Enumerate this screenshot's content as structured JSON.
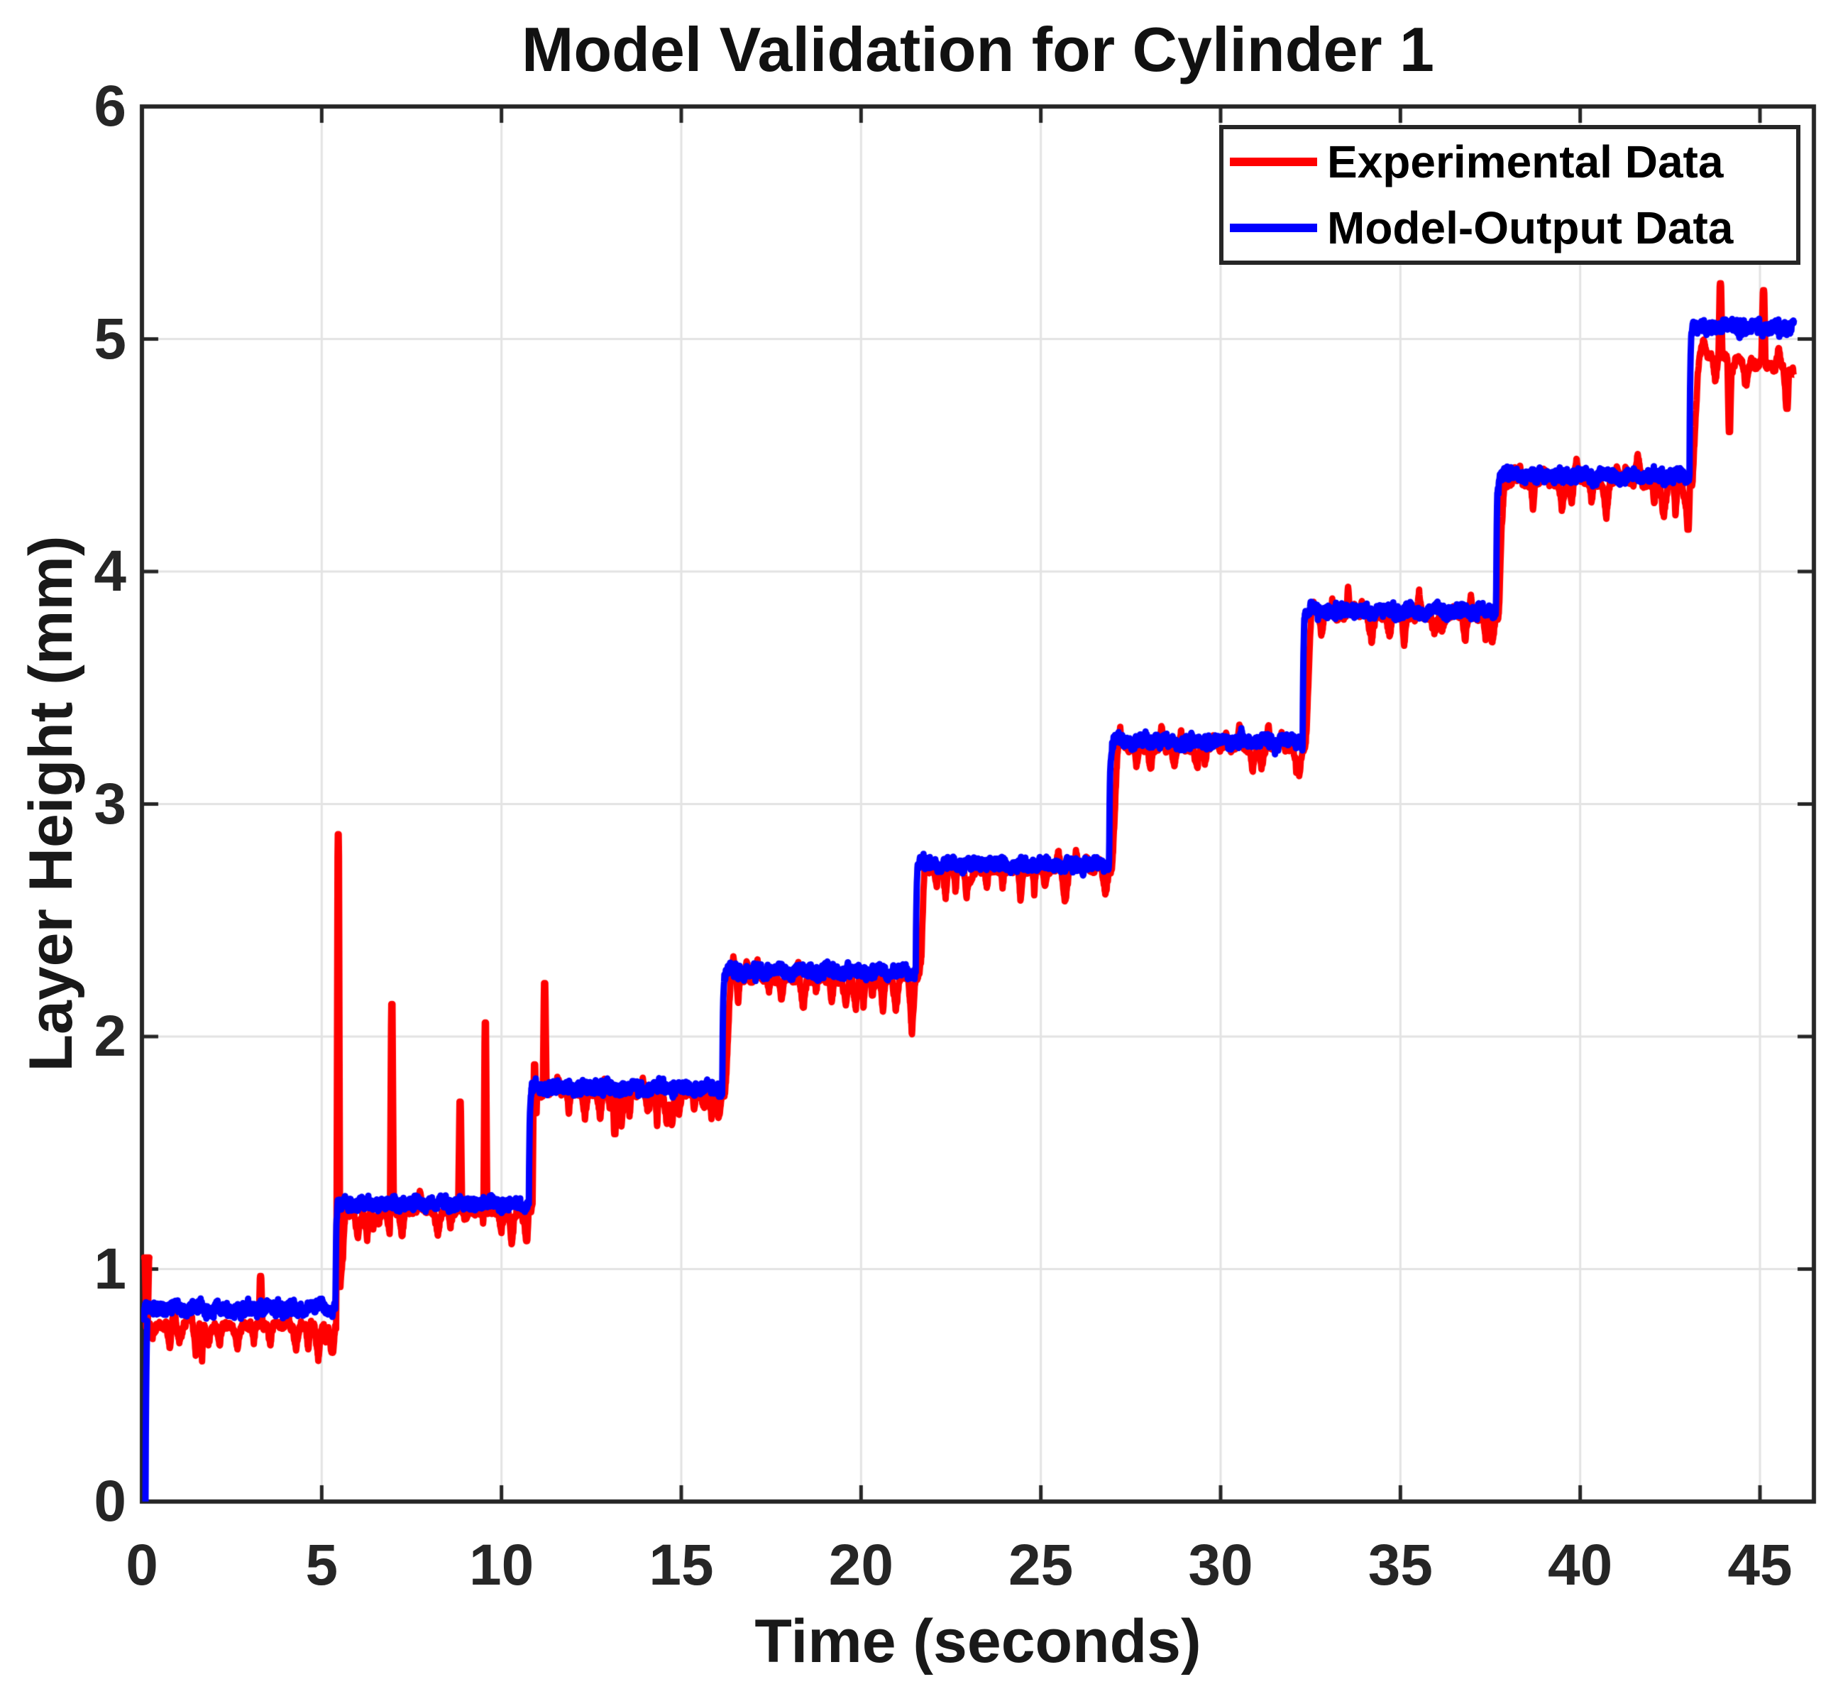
{
  "chart_data": {
    "type": "line",
    "title": "Model Validation for Cylinder 1",
    "xlabel": "Time (seconds)",
    "ylabel": "Layer Height (mm)",
    "xlim": [
      0,
      46.5
    ],
    "ylim": [
      0,
      6
    ],
    "xticks": [
      0,
      5,
      10,
      15,
      20,
      25,
      30,
      35,
      40,
      45
    ],
    "yticks": [
      0,
      1,
      2,
      3,
      4,
      5,
      6
    ],
    "grid": true,
    "grid_color": "#e3e3e3",
    "axes_color": "#262626",
    "legend_position": "northeast",
    "sample_dt": 0.008,
    "t_end": 45.95,
    "step_times": [
      0,
      5.38,
      10.76,
      16.14,
      21.52,
      26.9,
      32.28,
      37.66,
      43.04
    ],
    "series": [
      {
        "name": "Experimental Data",
        "color": "#ff0000",
        "levels": [
          0.755,
          1.25,
          1.76,
          2.25,
          2.72,
          3.24,
          3.81,
          4.38,
          4.95
        ],
        "final_level_end": 4.86,
        "start_value": 0.8,
        "noise_band": 0.1,
        "rise_lag_seconds": 0.12,
        "spikes": [
          [
            0.06,
            1.05
          ],
          [
            3.3,
            0.97
          ],
          [
            5.46,
            2.87
          ],
          [
            6.95,
            2.14
          ],
          [
            8.85,
            1.72
          ],
          [
            9.55,
            2.06
          ],
          [
            10.92,
            1.88
          ],
          [
            11.2,
            2.23
          ],
          [
            43.9,
            5.24
          ],
          [
            45.1,
            5.21
          ]
        ],
        "dips": [
          [
            5.3,
            0.64
          ],
          [
            10.7,
            1.12
          ],
          [
            13.15,
            1.58
          ],
          [
            43.0,
            4.18
          ],
          [
            44.15,
            4.6
          ],
          [
            45.75,
            4.7
          ]
        ]
      },
      {
        "name": "Model-Output Data",
        "color": "#0000ff",
        "levels": [
          0.83,
          1.28,
          1.78,
          2.28,
          2.74,
          3.27,
          3.83,
          4.41,
          5.05
        ],
        "start_value": 0,
        "noise_band": 0.05,
        "spikes": [],
        "dips": []
      }
    ]
  },
  "legend": {
    "items": [
      {
        "label": "Experimental Data",
        "color": "#ff0000"
      },
      {
        "label": "Model-Output Data",
        "color": "#0000ff"
      }
    ]
  }
}
